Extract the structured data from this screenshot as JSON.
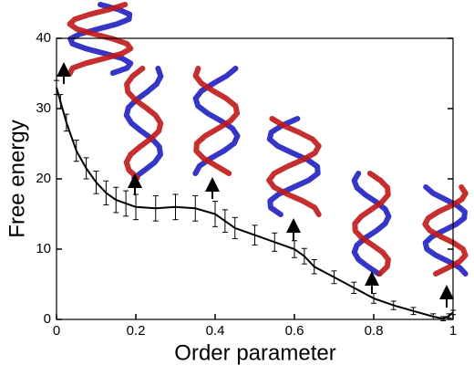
{
  "chart_data": {
    "type": "line",
    "xlabel": "Order parameter",
    "ylabel": "Free energy",
    "x": [
      0,
      0.01,
      0.025,
      0.05,
      0.075,
      0.1,
      0.125,
      0.15,
      0.175,
      0.2,
      0.25,
      0.3,
      0.35,
      0.4,
      0.425,
      0.45,
      0.5,
      0.55,
      0.6,
      0.625,
      0.65,
      0.7,
      0.75,
      0.8,
      0.85,
      0.9,
      0.95,
      0.975,
      0.99,
      1
    ],
    "series": [
      {
        "color": "#000000",
        "values": [
          33,
          31,
          28,
          24,
          21.5,
          19.5,
          18,
          17,
          16.5,
          16,
          15.8,
          16,
          15.8,
          15,
          14,
          13,
          12,
          11,
          10,
          9,
          7.5,
          6,
          4.5,
          3,
          2,
          1.2,
          0.4,
          0.1,
          0.5,
          1
        ],
        "errors": [
          1,
          1,
          1.2,
          1.5,
          1.5,
          1.6,
          1.7,
          1.8,
          1.8,
          1.8,
          1.8,
          1.8,
          1.8,
          1.8,
          1.6,
          1.5,
          1.4,
          1.3,
          1.2,
          1.1,
          1,
          0.9,
          0.8,
          0.7,
          0.6,
          0.5,
          0.4,
          0.3,
          0.3,
          0.3
        ]
      }
    ],
    "xlim": [
      0,
      1
    ],
    "ylim": [
      0,
      40
    ],
    "xticks": [
      0,
      0.2,
      0.4,
      0.6,
      0.8,
      1
    ],
    "yticks": [
      0,
      10,
      20,
      30,
      40
    ]
  }
}
